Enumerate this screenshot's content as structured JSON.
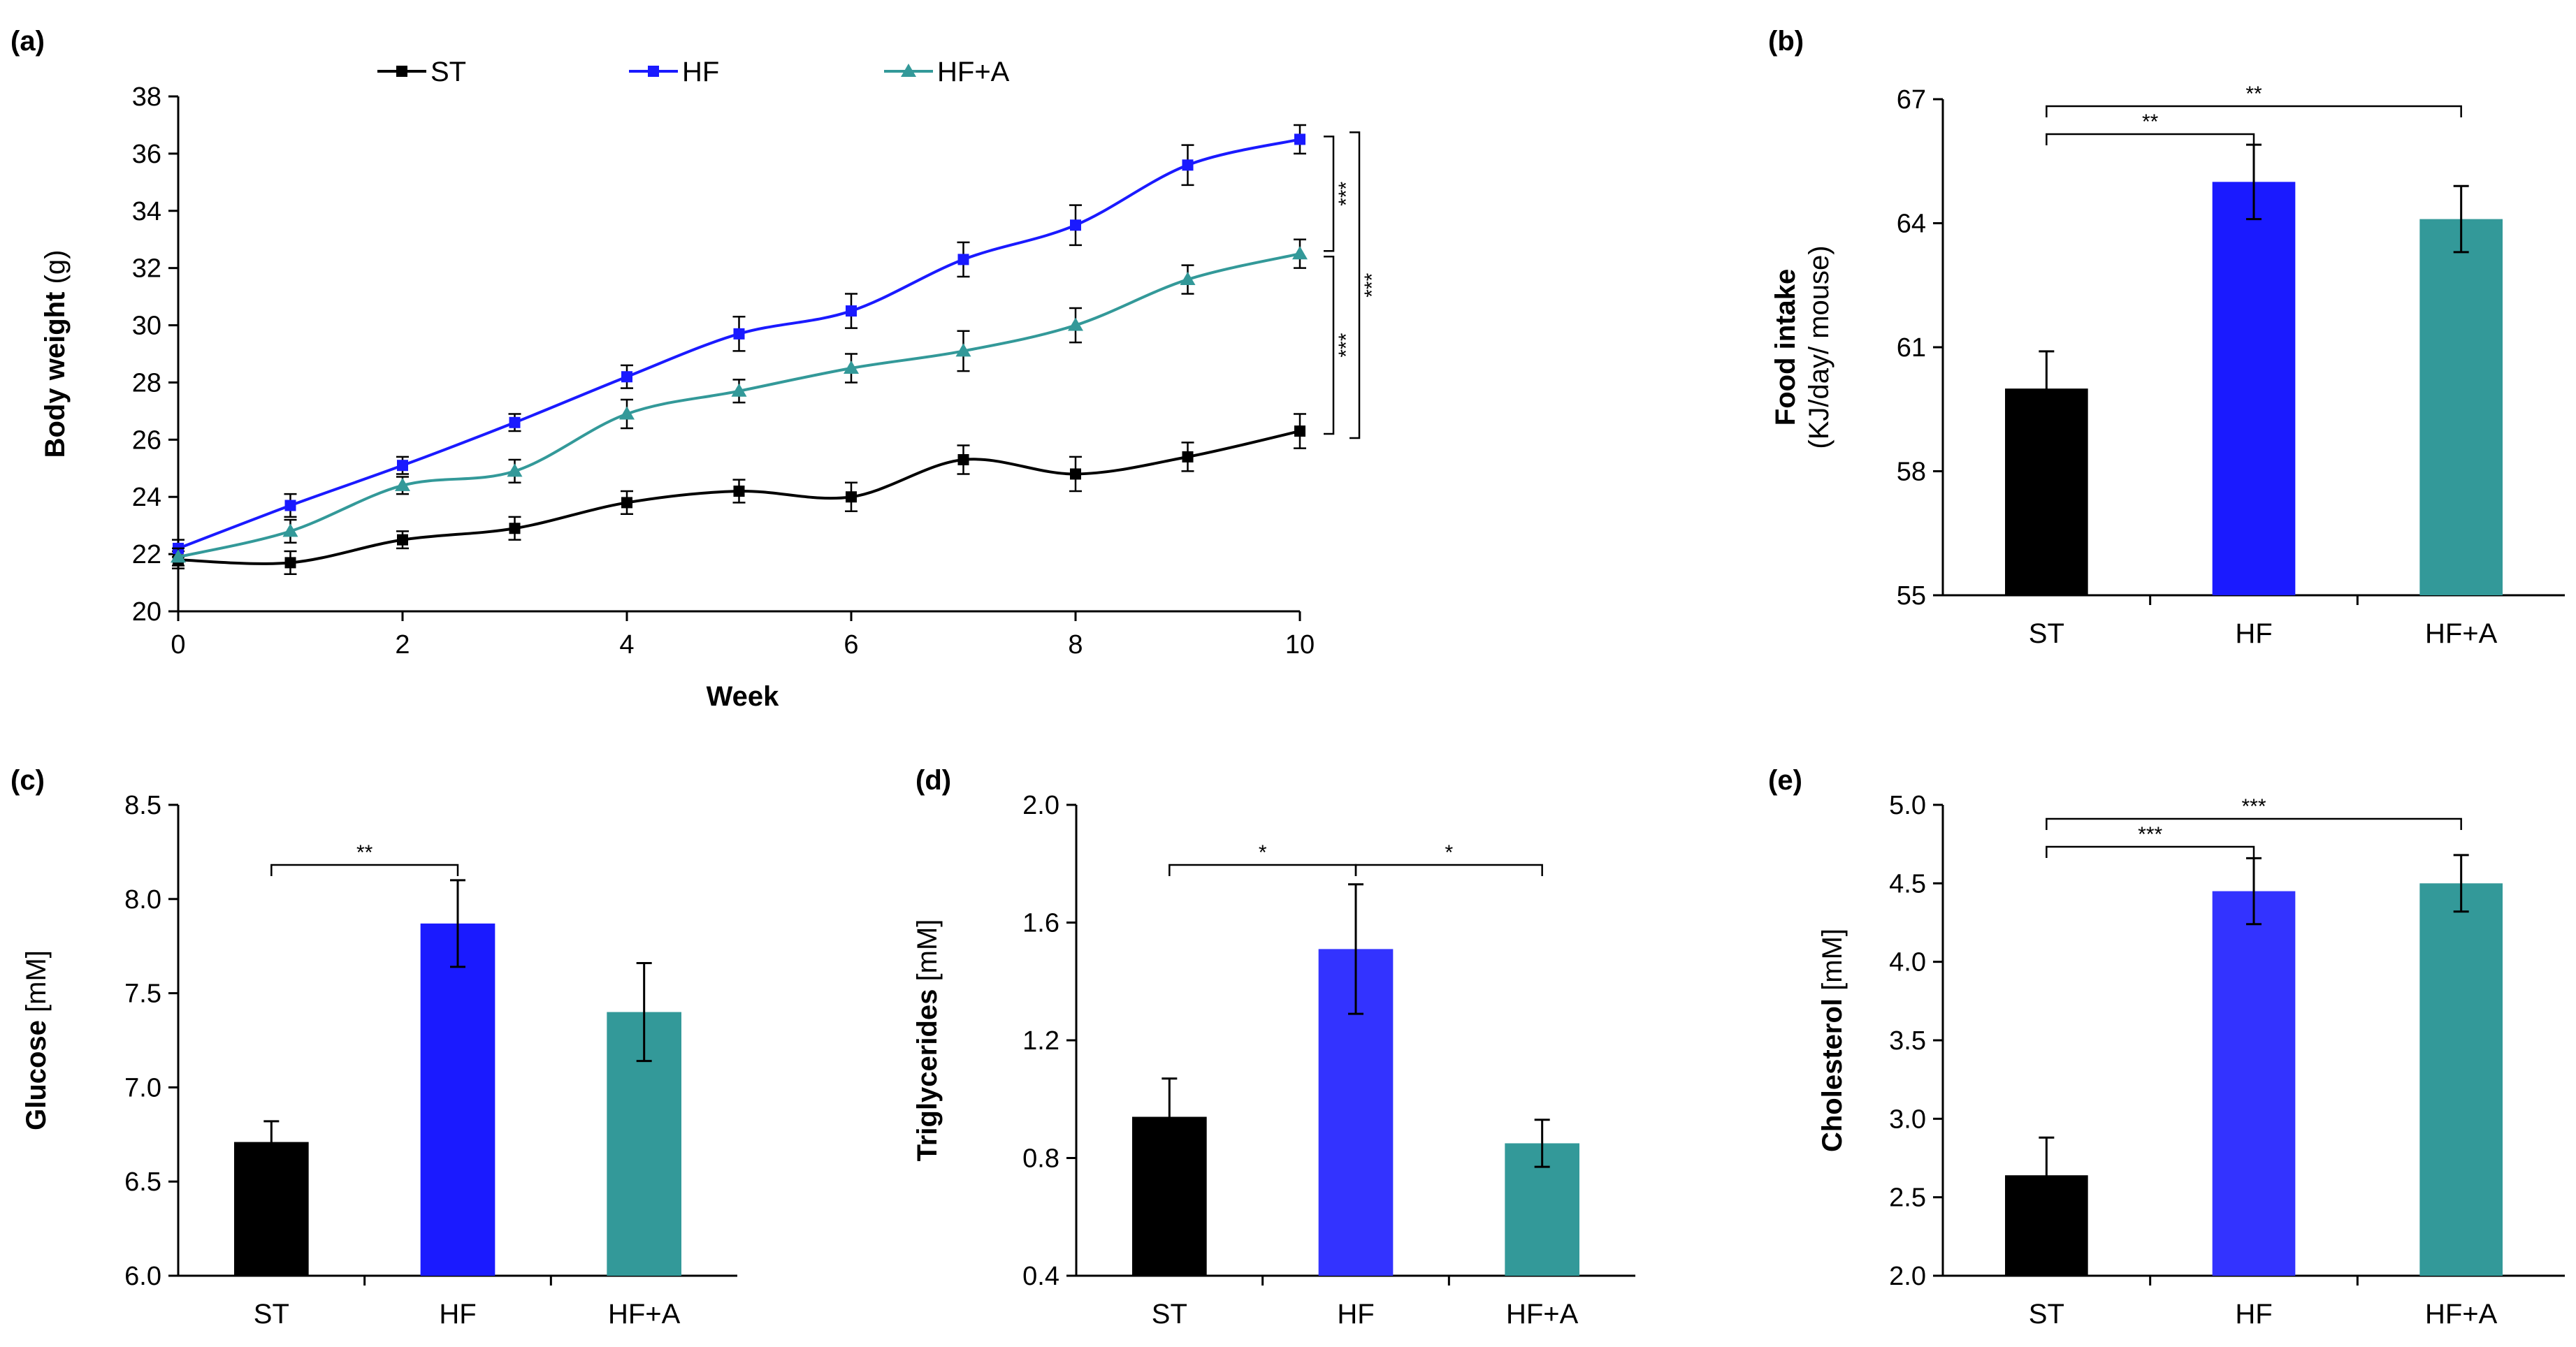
{
  "colors": {
    "ST": "#000000",
    "HF": "#1a1aff",
    "HF_A": "#339999",
    "HF_bar_light": "#3333ff",
    "axis": "#000000"
  },
  "chart_data": [
    {
      "id": "a",
      "panel_label": "(a)",
      "type": "line",
      "xlabel": "Week",
      "ylabel_bold": "Body weight",
      "ylabel_unit": "(g)",
      "xlim": [
        0,
        10
      ],
      "ylim": [
        20,
        38
      ],
      "xticks": [
        "0",
        "2",
        "4",
        "6",
        "8",
        "10"
      ],
      "yticks": [
        "20",
        "22",
        "24",
        "26",
        "28",
        "30",
        "32",
        "34",
        "36",
        "38"
      ],
      "x": [
        0,
        1,
        2,
        3,
        4,
        5,
        6,
        7,
        8,
        9,
        10
      ],
      "series": [
        {
          "name": "ST",
          "marker": "square",
          "values": [
            21.8,
            21.7,
            22.5,
            22.9,
            23.8,
            24.2,
            24.0,
            25.3,
            24.8,
            25.4,
            26.3
          ],
          "errors": [
            0.3,
            0.4,
            0.3,
            0.4,
            0.4,
            0.4,
            0.5,
            0.5,
            0.6,
            0.5,
            0.6
          ]
        },
        {
          "name": "HF",
          "marker": "square",
          "values": [
            22.2,
            23.7,
            25.1,
            26.6,
            28.2,
            29.7,
            30.5,
            32.3,
            33.5,
            35.6,
            36.5
          ],
          "errors": [
            0.3,
            0.4,
            0.3,
            0.3,
            0.4,
            0.6,
            0.6,
            0.6,
            0.7,
            0.7,
            0.5
          ]
        },
        {
          "name": "HF+A",
          "marker": "triangle",
          "values": [
            21.9,
            22.8,
            24.4,
            24.9,
            26.9,
            27.7,
            28.5,
            29.1,
            30.0,
            31.6,
            32.5
          ],
          "errors": [
            0.3,
            0.4,
            0.3,
            0.4,
            0.5,
            0.4,
            0.5,
            0.7,
            0.6,
            0.5,
            0.5
          ]
        }
      ],
      "significance": [
        {
          "from": "HF",
          "to": "HF+A",
          "label": "***"
        },
        {
          "from": "HF+A",
          "to": "ST",
          "label": "***"
        },
        {
          "from": "HF",
          "to": "ST",
          "label": "***"
        }
      ]
    },
    {
      "id": "b",
      "panel_label": "(b)",
      "type": "bar",
      "ylabel_bold": "Food intake",
      "ylabel_unit": "(KJ/day/ mouse)",
      "categories": [
        "ST",
        "HF",
        "HF+A"
      ],
      "values": [
        60.0,
        65.0,
        64.1
      ],
      "errors": [
        0.9,
        0.9,
        0.8
      ],
      "ylim": [
        55,
        67
      ],
      "yticks": [
        "55",
        "58",
        "61",
        "64",
        "67"
      ],
      "significance": [
        {
          "from": "ST",
          "to": "HF",
          "label": "**"
        },
        {
          "from": "ST",
          "to": "HF+A",
          "label": "**"
        }
      ]
    },
    {
      "id": "c",
      "panel_label": "(c)",
      "type": "bar",
      "ylabel_bold": "Glucose",
      "ylabel_unit": "[mM]",
      "categories": [
        "ST",
        "HF",
        "HF+A"
      ],
      "values": [
        6.71,
        7.87,
        7.4
      ],
      "errors": [
        0.11,
        0.23,
        0.26
      ],
      "ylim": [
        6.0,
        8.5
      ],
      "yticks": [
        "6.0",
        "6.5",
        "7.0",
        "7.5",
        "8.0",
        "8.5"
      ],
      "significance": [
        {
          "from": "ST",
          "to": "HF",
          "label": "**"
        }
      ]
    },
    {
      "id": "d",
      "panel_label": "(d)",
      "type": "bar",
      "ylabel_bold": "Triglycerides",
      "ylabel_unit": "[mM]",
      "categories": [
        "ST",
        "HF",
        "HF+A"
      ],
      "values": [
        0.94,
        1.51,
        0.85
      ],
      "errors": [
        0.13,
        0.22,
        0.08
      ],
      "ylim": [
        0.4,
        2.0
      ],
      "yticks": [
        "0.4",
        "0.8",
        "1.2",
        "1.6",
        "2.0"
      ],
      "significance": [
        {
          "from": "ST",
          "to": "HF",
          "label": "*"
        },
        {
          "from": "HF",
          "to": "HF+A",
          "label": "*"
        }
      ]
    },
    {
      "id": "e",
      "panel_label": "(e)",
      "type": "bar",
      "ylabel_bold": "Cholesterol",
      "ylabel_unit": "[mM]",
      "categories": [
        "ST",
        "HF",
        "HF+A"
      ],
      "values": [
        2.64,
        4.45,
        4.5
      ],
      "errors": [
        0.24,
        0.21,
        0.18
      ],
      "ylim": [
        2.0,
        5.0
      ],
      "yticks": [
        "2.0",
        "2.5",
        "3.0",
        "3.5",
        "4.0",
        "4.5",
        "5.0"
      ],
      "significance": [
        {
          "from": "ST",
          "to": "HF",
          "label": "***"
        },
        {
          "from": "ST",
          "to": "HF+A",
          "label": "***"
        }
      ]
    }
  ]
}
